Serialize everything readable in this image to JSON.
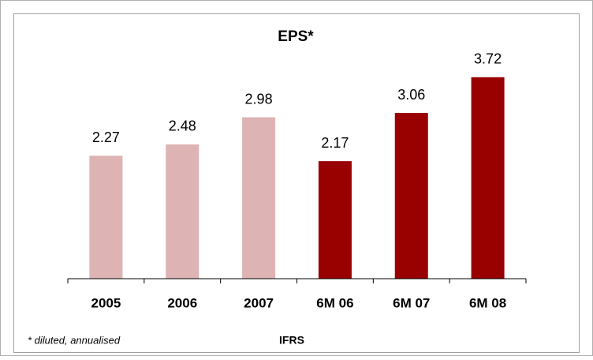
{
  "chart_data": {
    "type": "bar",
    "title": "EPS*",
    "categories": [
      "2005",
      "2006",
      "2007",
      "6M 06",
      "6M 07",
      "6M 08"
    ],
    "values": [
      2.27,
      2.48,
      2.98,
      2.17,
      3.06,
      3.72
    ],
    "colors": [
      "#deb3b3",
      "#deb3b3",
      "#deb3b3",
      "#990000",
      "#990000",
      "#990000"
    ],
    "footnote": "* diluted, annualised",
    "note": "IFRS"
  }
}
